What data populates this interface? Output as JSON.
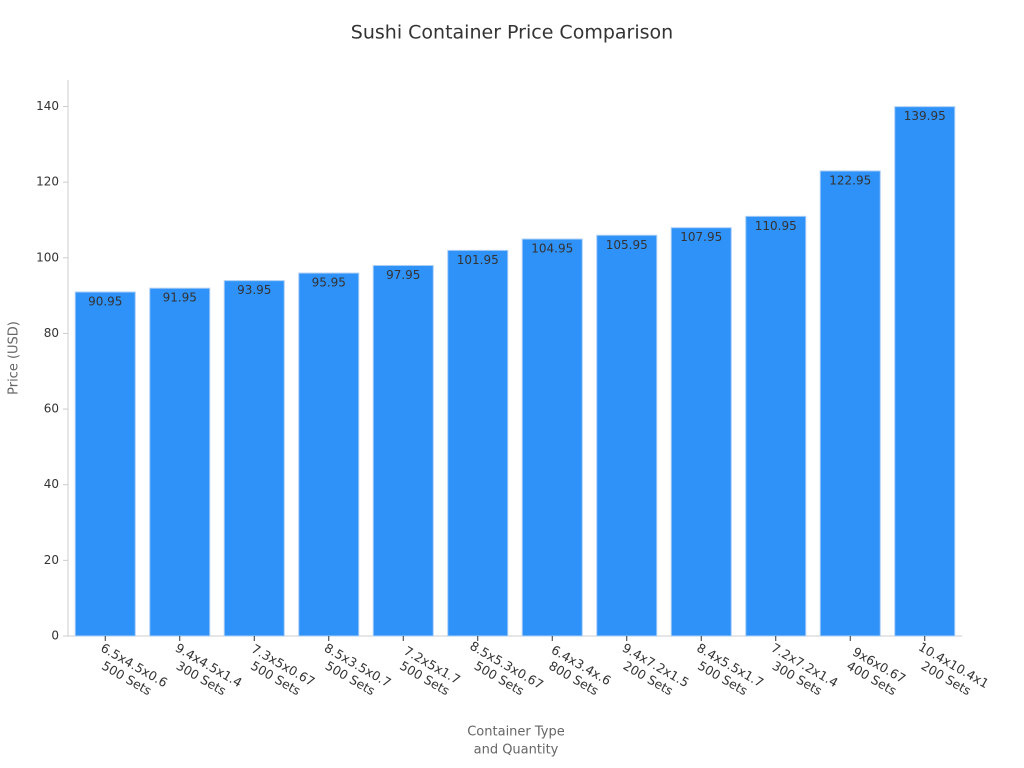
{
  "chart_data": {
    "type": "bar",
    "title": "Sushi Container Price Comparison",
    "x_label": [
      "Container Type",
      "and Quantity"
    ],
    "y_label": "Price (USD)",
    "categories": [
      [
        "6.5x4.5x0.6",
        "500 Sets"
      ],
      [
        "9.4x4.5x1.4",
        "300 Sets"
      ],
      [
        "7.3x5x0.67",
        "500 Sets"
      ],
      [
        "8.5x3.5x0.7",
        "500 Sets"
      ],
      [
        "7.2x5x1.7",
        "500 Sets"
      ],
      [
        "8.5x5.3x0.67",
        "500 Sets"
      ],
      [
        "6.4x3.4x.6",
        "800 Sets"
      ],
      [
        "9.4x7.2x1.5",
        "200 Sets"
      ],
      [
        "8.4x5.5x1.7",
        "500 Sets"
      ],
      [
        "7.2x7.2x1.4",
        "300 Sets"
      ],
      [
        "9x6x0.67",
        "400 Sets"
      ],
      [
        "10.4x10.4x1",
        "200 Sets"
      ]
    ],
    "values": [
      90.95,
      91.95,
      93.95,
      95.95,
      97.95,
      101.95,
      104.95,
      105.95,
      107.95,
      110.95,
      122.95,
      139.95
    ],
    "color": "#2f92f8",
    "ylim": [
      0,
      147
    ],
    "yticks": [
      0,
      20,
      40,
      60,
      80,
      100,
      120,
      140
    ],
    "grid": false
  }
}
